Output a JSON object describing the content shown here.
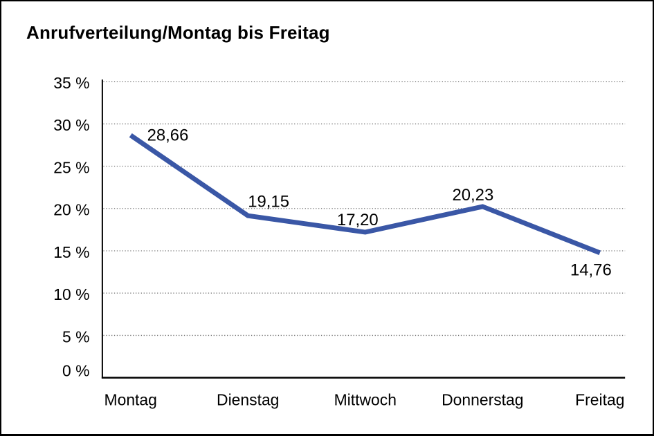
{
  "window": {
    "background": "#FFFFFF",
    "frame_border_color": "#000000"
  },
  "chart_data": {
    "type": "line",
    "title": "Anrufverteilung/Montag bis Freitag",
    "categories": [
      "Montag",
      "Dienstag",
      "Mittwoch",
      "Donnerstag",
      "Freitag"
    ],
    "values": [
      28.66,
      19.15,
      17.2,
      20.23,
      14.76
    ],
    "value_labels": [
      "28,66",
      "19,15",
      "17,20",
      "20,23",
      "14,76"
    ],
    "y_tick_labels": [
      "35 %",
      "30 %",
      "25 %",
      "20 %",
      "15 %",
      "10 %",
      "5 %",
      "0 %"
    ],
    "ylim": [
      0,
      35
    ],
    "y_tick_step": 5,
    "xlabel": "",
    "ylabel": "",
    "grid": "horizontal-dotted",
    "legend": "none",
    "decimal_separator": ",",
    "line_color": "#3A57A6",
    "gridline_color": "#777777",
    "axis_color": "#000000",
    "text_color": "#000000"
  }
}
